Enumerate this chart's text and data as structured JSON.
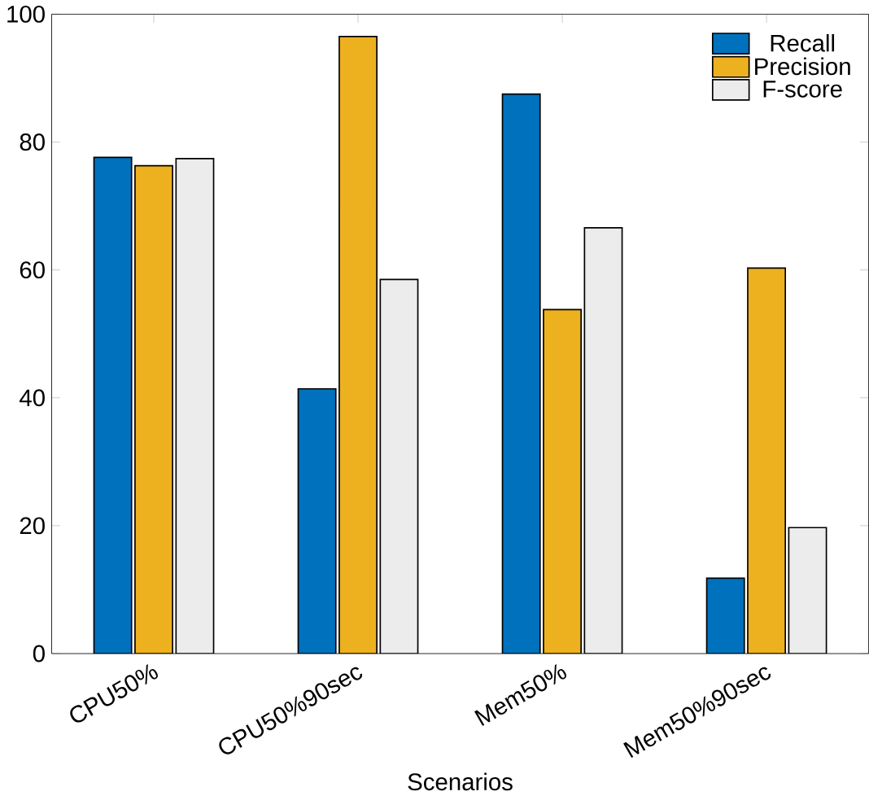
{
  "chart_data": {
    "type": "bar",
    "xlabel": "Scenarios",
    "categories": [
      "CPU50%",
      "CPU50%90sec",
      "Mem50%",
      "Mem50%90sec"
    ],
    "series": [
      {
        "name": "Recall",
        "color": "#0072bd",
        "values": [
          77.6,
          41.4,
          87.5,
          11.8
        ]
      },
      {
        "name": "Precision",
        "color": "#edb120",
        "values": [
          76.3,
          96.5,
          53.8,
          60.3
        ]
      },
      {
        "name": "F-score",
        "color": "#ececec",
        "values": [
          77.4,
          58.5,
          66.6,
          19.7
        ]
      }
    ],
    "ylim": [
      0,
      100
    ],
    "yticks": [
      0,
      20,
      40,
      60,
      80,
      100
    ],
    "legend": "top right",
    "grid": false
  }
}
